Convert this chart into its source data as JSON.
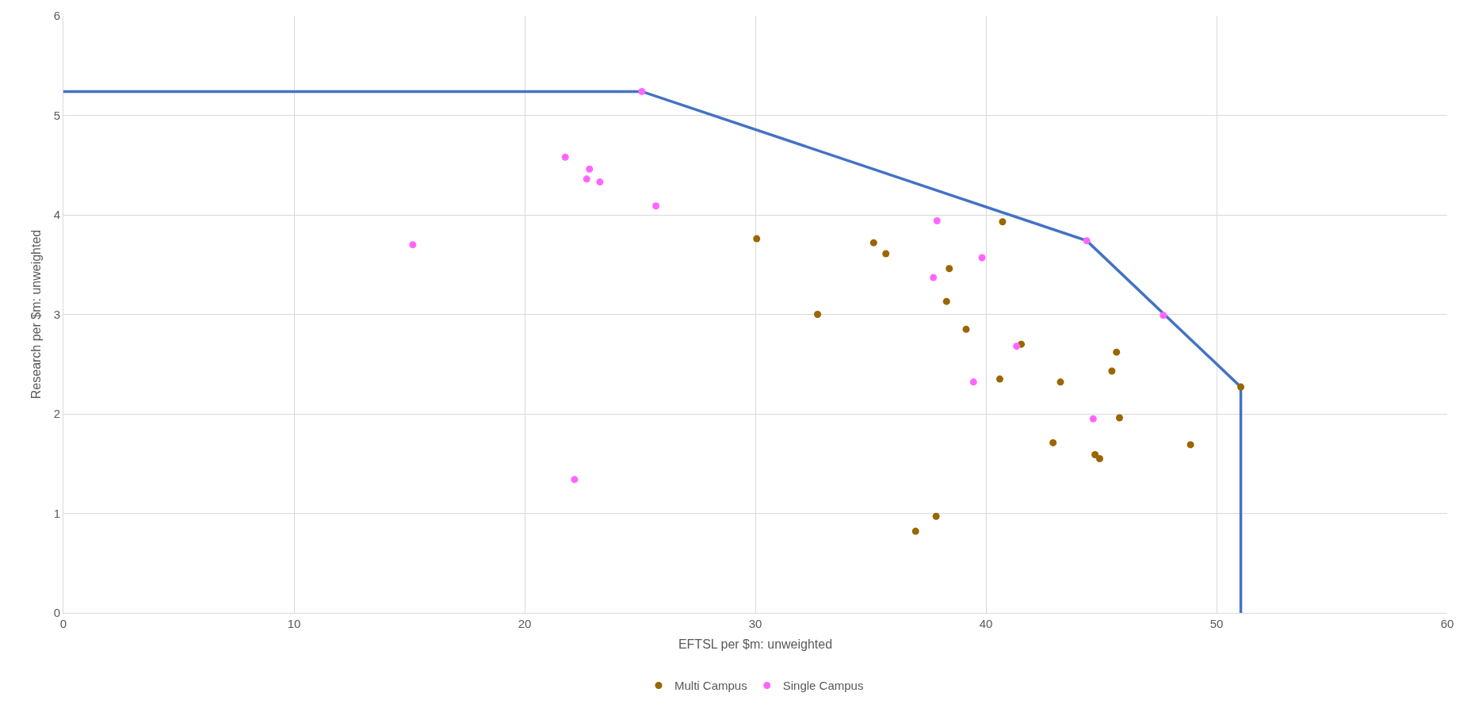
{
  "chart_data": {
    "type": "scatter",
    "xlabel": "EFTSL per $m: unweighted",
    "ylabel": "Research per $m: unweighted",
    "xlim": [
      0,
      60
    ],
    "xticks": [
      0,
      10,
      20,
      30,
      40,
      50,
      60
    ],
    "ylim": [
      0,
      6
    ],
    "yticks": [
      0,
      1,
      2,
      3,
      4,
      5,
      6
    ],
    "grid": true,
    "legend": "bottom",
    "marker": "circle",
    "series": [
      {
        "type": "line",
        "color": "#4472c4",
        "x": [
          0,
          25.08,
          44.37,
          51.05,
          51.05
        ],
        "values": [
          5.24,
          5.24,
          3.74,
          2.27,
          0
        ],
        "marker": "none",
        "line_style": "solid"
      },
      {
        "name": "Multi Campus",
        "color": "#996600",
        "x": [
          30.06,
          35.13,
          35.66,
          40.72,
          38.41,
          32.7,
          38.29,
          39.14,
          41.53,
          45.66,
          45.46,
          40.6,
          43.23,
          51.05,
          45.79,
          42.91,
          48.87,
          44.73,
          44.93,
          37.84,
          36.95
        ],
        "values": [
          3.76,
          3.72,
          3.61,
          3.93,
          3.46,
          3.0,
          3.13,
          2.85,
          2.7,
          2.62,
          2.43,
          2.35,
          2.32,
          2.27,
          1.96,
          1.71,
          1.69,
          1.59,
          1.55,
          0.97,
          0.82
        ]
      },
      {
        "name": "Single Campus",
        "color": "#ff66ff",
        "x": [
          15.15,
          21.76,
          22.81,
          22.69,
          23.26,
          25.08,
          25.69,
          37.88,
          39.83,
          37.72,
          41.33,
          39.46,
          44.65,
          44.37,
          47.69,
          22.16
        ],
        "values": [
          3.7,
          4.58,
          4.46,
          4.36,
          4.33,
          5.24,
          4.09,
          3.94,
          3.57,
          3.37,
          2.68,
          2.32,
          1.95,
          3.74,
          2.99,
          1.34
        ]
      }
    ]
  }
}
